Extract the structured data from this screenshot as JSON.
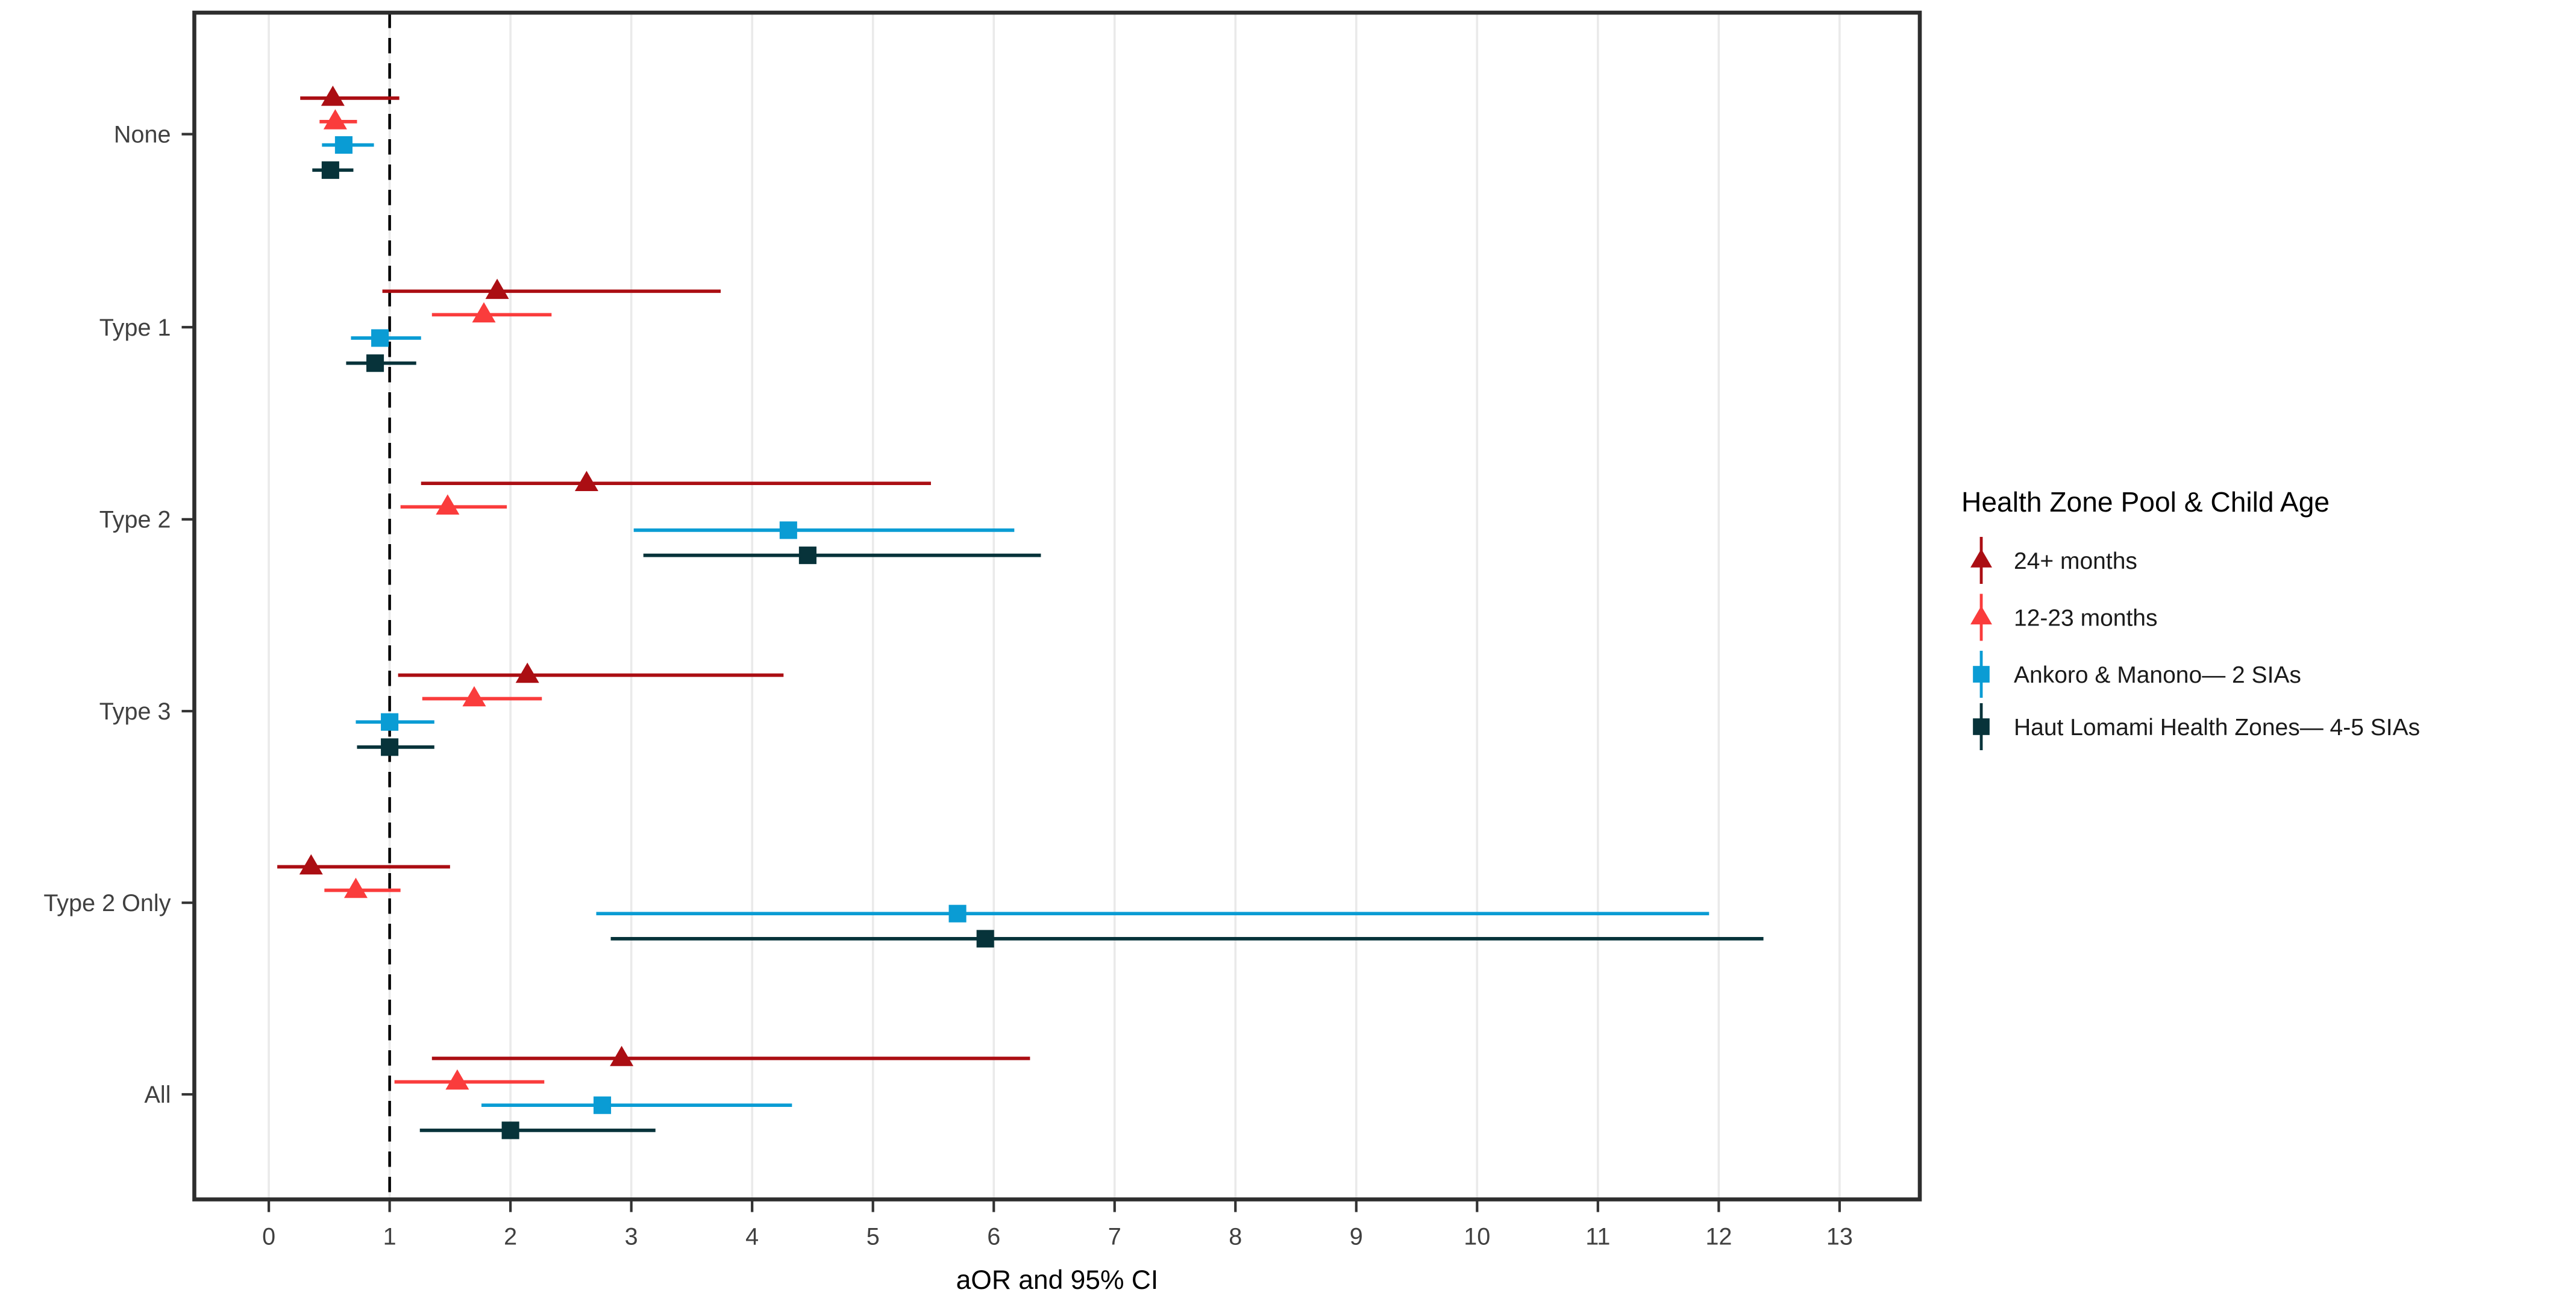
{
  "chart_data": {
    "type": "forest",
    "title": "",
    "xlabel": "aOR and 95% CI",
    "x_ticks": [
      0,
      1,
      2,
      3,
      4,
      5,
      6,
      7,
      8,
      9,
      10,
      11,
      12,
      13
    ],
    "xlim": [
      -0.62,
      13.66
    ],
    "grid": "major-x-only",
    "reference_line_x": 1,
    "legend_position": "right",
    "legend_title": "Health Zone Pool & Child Age",
    "categories": [
      "None",
      "Type 1",
      "Type 2",
      "Type 3",
      "Type 2 Only",
      "All"
    ],
    "series": [
      {
        "name": "24+ months",
        "marker": "triangle",
        "color": "#AB0E13",
        "points": [
          {
            "category": "None",
            "or": 0.53,
            "lo": 0.26,
            "hi": 1.08
          },
          {
            "category": "Type 1",
            "or": 1.89,
            "lo": 0.94,
            "hi": 3.74
          },
          {
            "category": "Type 2",
            "or": 2.63,
            "lo": 1.26,
            "hi": 5.48
          },
          {
            "category": "Type 3",
            "or": 2.14,
            "lo": 1.07,
            "hi": 4.26
          },
          {
            "category": "Type 2 Only",
            "or": 0.35,
            "lo": 0.07,
            "hi": 1.5
          },
          {
            "category": "All",
            "or": 2.92,
            "lo": 1.35,
            "hi": 6.3
          }
        ]
      },
      {
        "name": "12-23 months",
        "marker": "triangle",
        "color": "#FA3C3C",
        "points": [
          {
            "category": "None",
            "or": 0.55,
            "lo": 0.42,
            "hi": 0.73
          },
          {
            "category": "Type 1",
            "or": 1.78,
            "lo": 1.35,
            "hi": 2.34
          },
          {
            "category": "Type 2",
            "or": 1.48,
            "lo": 1.09,
            "hi": 1.97
          },
          {
            "category": "Type 3",
            "or": 1.7,
            "lo": 1.27,
            "hi": 2.26
          },
          {
            "category": "Type 2 Only",
            "or": 0.72,
            "lo": 0.46,
            "hi": 1.09
          },
          {
            "category": "All",
            "or": 1.56,
            "lo": 1.04,
            "hi": 2.28
          }
        ]
      },
      {
        "name": "Ankoro & Manono— 2 SIAs",
        "marker": "square",
        "color": "#0A9CD4",
        "points": [
          {
            "category": "None",
            "or": 0.62,
            "lo": 0.44,
            "hi": 0.87
          },
          {
            "category": "Type 1",
            "or": 0.92,
            "lo": 0.68,
            "hi": 1.26
          },
          {
            "category": "Type 2",
            "or": 4.3,
            "lo": 3.02,
            "hi": 6.17
          },
          {
            "category": "Type 3",
            "or": 1.0,
            "lo": 0.72,
            "hi": 1.37
          },
          {
            "category": "Type 2 Only",
            "or": 5.7,
            "lo": 2.71,
            "hi": 11.92
          },
          {
            "category": "All",
            "or": 2.76,
            "lo": 1.76,
            "hi": 4.33
          }
        ]
      },
      {
        "name": "Haut Lomami Health Zones— 4-5 SIAs",
        "marker": "square",
        "color": "#07333A",
        "points": [
          {
            "category": "None",
            "or": 0.51,
            "lo": 0.36,
            "hi": 0.7
          },
          {
            "category": "Type 1",
            "or": 0.88,
            "lo": 0.64,
            "hi": 1.22
          },
          {
            "category": "Type 2",
            "or": 4.46,
            "lo": 3.1,
            "hi": 6.39
          },
          {
            "category": "Type 3",
            "or": 1.0,
            "lo": 0.73,
            "hi": 1.37
          },
          {
            "category": "Type 2 Only",
            "or": 5.93,
            "lo": 2.83,
            "hi": 12.37
          },
          {
            "category": "All",
            "or": 2.0,
            "lo": 1.25,
            "hi": 3.2
          }
        ]
      }
    ],
    "colors": {
      "grid": "#EAEAEA",
      "panel_border": "#2E2E2E",
      "axis_text": "#404040",
      "axis_title": "#000000",
      "reference_line": "#000000",
      "legend_text": "#1A1A1A"
    }
  }
}
